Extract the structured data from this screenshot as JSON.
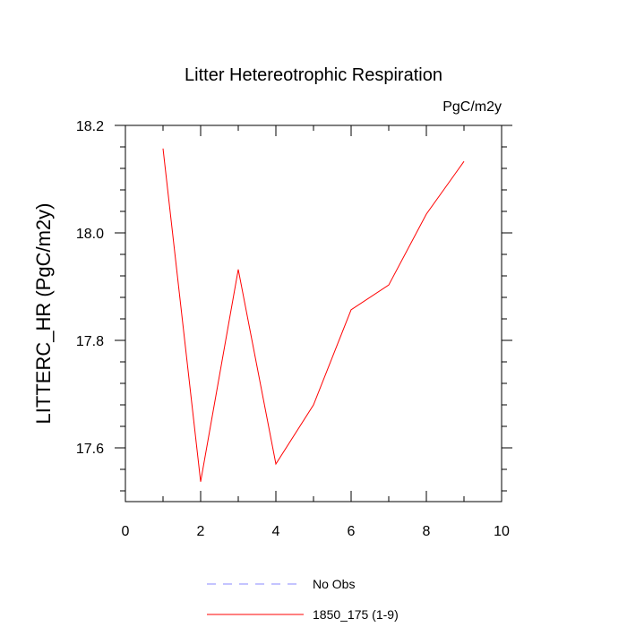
{
  "chart_data": {
    "type": "line",
    "title": "Litter Hetereotrophic Respiration",
    "units_label": "PgC/m2y",
    "ylabel": "LITTERC_HR  (PgC/m2y)",
    "xlabel": "",
    "xlim": [
      0,
      10
    ],
    "ylim": [
      17.5,
      18.2
    ],
    "x_ticks": [
      0,
      2,
      4,
      6,
      8,
      10
    ],
    "x_tick_labels": [
      "0",
      "2",
      "4",
      "6",
      "8",
      "10"
    ],
    "x_minor_ticks": [
      1,
      3,
      5,
      7,
      9
    ],
    "y_ticks": [
      17.6,
      17.8,
      18.0,
      18.2
    ],
    "y_tick_labels": [
      "17.6",
      "17.8",
      "18.0",
      "18.2"
    ],
    "y_minor_ticks": [
      17.52,
      17.56,
      17.64,
      17.68,
      17.72,
      17.76,
      17.84,
      17.88,
      17.92,
      17.96,
      18.04,
      18.08,
      18.12,
      18.16
    ],
    "grid": false,
    "series": [
      {
        "name": "1850_175 (1-9)",
        "color": "#ff0000",
        "dash": "solid",
        "x": [
          1,
          2,
          3,
          4,
          5,
          6,
          7,
          8,
          9
        ],
        "values": [
          18.157,
          17.537,
          17.932,
          17.57,
          17.68,
          17.857,
          17.903,
          18.035,
          18.133
        ]
      }
    ],
    "legend": [
      {
        "label": "No Obs",
        "color": "#8888ff",
        "dash": "dashed"
      },
      {
        "label": "1850_175 (1-9)",
        "color": "#ff0000",
        "dash": "solid"
      }
    ],
    "legend_position": "bottom-center"
  }
}
